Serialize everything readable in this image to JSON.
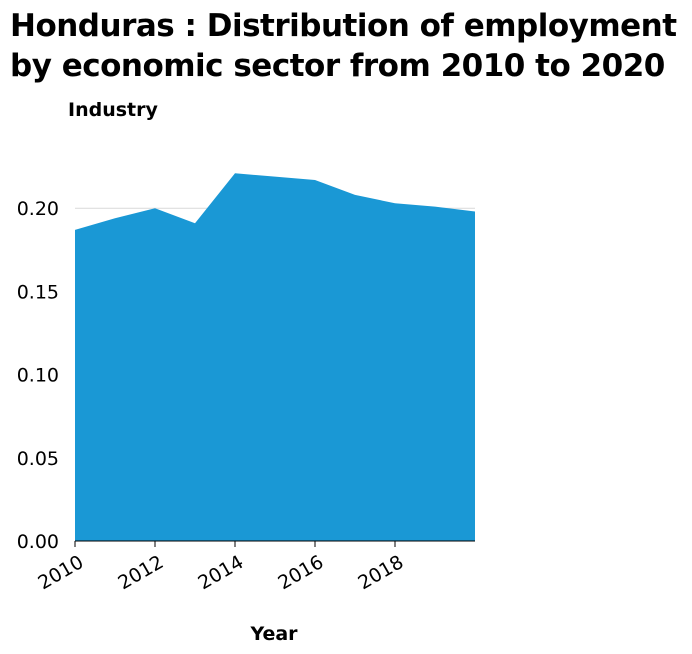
{
  "chart_data": {
    "type": "area",
    "title": "Honduras : Distribution of employment by economic sector from 2010 to 2020",
    "xlabel": "Year",
    "ylabel": "Industry",
    "x": [
      2010,
      2011,
      2012,
      2013,
      2014,
      2015,
      2016,
      2017,
      2018,
      2019,
      2020
    ],
    "series": [
      {
        "values": [
          0.187,
          0.194,
          0.2,
          0.191,
          0.221,
          0.219,
          0.217,
          0.208,
          0.203,
          0.201,
          0.198
        ]
      }
    ],
    "xlim": [
      2010,
      2020
    ],
    "ylim": [
      0,
      0.235
    ],
    "xticks": [
      "2010",
      "2012",
      "2014",
      "2016",
      "2018"
    ],
    "yticks": [
      "0.00",
      "0.05",
      "0.10",
      "0.15",
      "0.20"
    ],
    "grid": true,
    "legend": "none",
    "color": "#1a98d5"
  }
}
